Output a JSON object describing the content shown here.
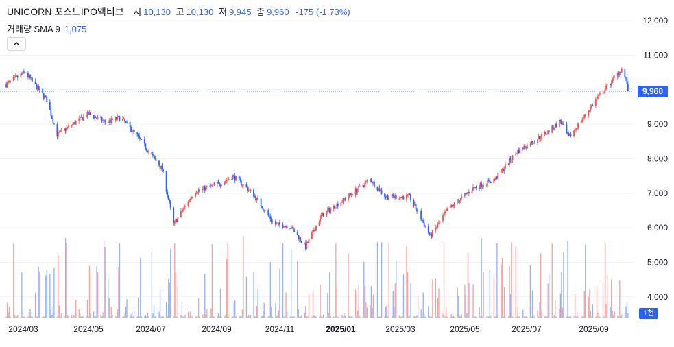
{
  "legend": {
    "title": "UNICORN 포스트IPO액티브",
    "open_label": "시",
    "open_value": "10,130",
    "high_label": "고",
    "high_value": "10,130",
    "low_label": "저",
    "low_value": "9,945",
    "close_label": "종",
    "close_value": "9,960",
    "change": "-175 (-1.73%)"
  },
  "volume_legend": {
    "label": "거래량 SMA 9",
    "value": "1,075"
  },
  "price_badge": "9,960",
  "volume_badge": "1천",
  "colors": {
    "up": "#ef5350",
    "down": "#2962ff",
    "accent": "#2962ff",
    "grid": "#f0f3fa",
    "axis_text": "#131722"
  },
  "chart_data": {
    "type": "candlestick",
    "y_axis": {
      "ticks": [
        12000,
        11000,
        10000,
        9000,
        8000,
        7000,
        6000,
        5000,
        4000
      ],
      "tick_labels": [
        "12,000",
        "11,000",
        "9,000",
        "8,000",
        "7,000",
        "6,000",
        "5,000",
        "4,000"
      ],
      "range": [
        3400,
        12600
      ]
    },
    "x_axis": {
      "tick_labels": [
        "2024/03",
        "2024/05",
        "2024/07",
        "2024/09",
        "2024/11",
        "2025/01",
        "2025/03",
        "2025/05",
        "2025/07",
        "2025/09"
      ],
      "bold_label": "2025/01",
      "range": [
        "2024-02-20",
        "2025-10-22"
      ]
    },
    "last_price": 9960,
    "key_points": [
      [
        "2024-02-26",
        10150
      ],
      [
        "2024-03-15",
        10500
      ],
      [
        "2024-04-05",
        9700
      ],
      [
        "2024-04-15",
        8700
      ],
      [
        "2024-05-15",
        9300
      ],
      [
        "2024-06-01",
        9050
      ],
      [
        "2024-06-15",
        9200
      ],
      [
        "2024-07-01",
        8650
      ],
      [
        "2024-07-25",
        7700
      ],
      [
        "2024-08-05",
        6100
      ],
      [
        "2024-08-25",
        7050
      ],
      [
        "2024-09-20",
        7300
      ],
      [
        "2024-10-01",
        7500
      ],
      [
        "2024-10-20",
        7000
      ],
      [
        "2024-11-10",
        6100
      ],
      [
        "2024-11-25",
        6050
      ],
      [
        "2024-12-10",
        5450
      ],
      [
        "2024-12-25",
        6350
      ],
      [
        "2025-01-15",
        6800
      ],
      [
        "2025-02-10",
        7400
      ],
      [
        "2025-02-25",
        6900
      ],
      [
        "2025-03-20",
        6900
      ],
      [
        "2025-04-09",
        5750
      ],
      [
        "2025-04-25",
        6500
      ],
      [
        "2025-05-20",
        7150
      ],
      [
        "2025-06-10",
        7400
      ],
      [
        "2025-07-01",
        8200
      ],
      [
        "2025-08-01",
        8800
      ],
      [
        "2025-08-12",
        9100
      ],
      [
        "2025-08-20",
        8600
      ],
      [
        "2025-09-15",
        9700
      ],
      [
        "2025-10-10",
        10600
      ],
      [
        "2025-10-16",
        10130
      ]
    ]
  }
}
